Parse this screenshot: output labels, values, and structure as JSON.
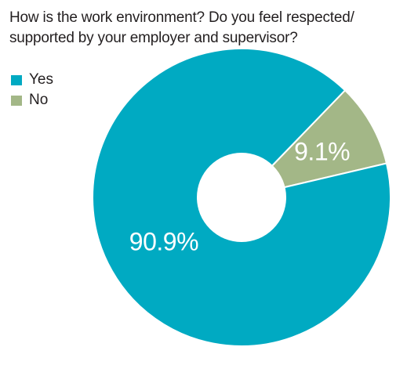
{
  "chart_data": {
    "type": "pie",
    "donut": true,
    "title_lines": [
      "How is the work environment? Do you feel respected/",
      "supported by your employer and supervisor?"
    ],
    "legend_placement": "top-left",
    "categories": [
      "Yes",
      "No"
    ],
    "values": [
      90.9,
      9.1
    ],
    "labels": [
      "90.9%",
      "9.1%"
    ],
    "colors": [
      "#00aac2",
      "#a3b787"
    ]
  }
}
